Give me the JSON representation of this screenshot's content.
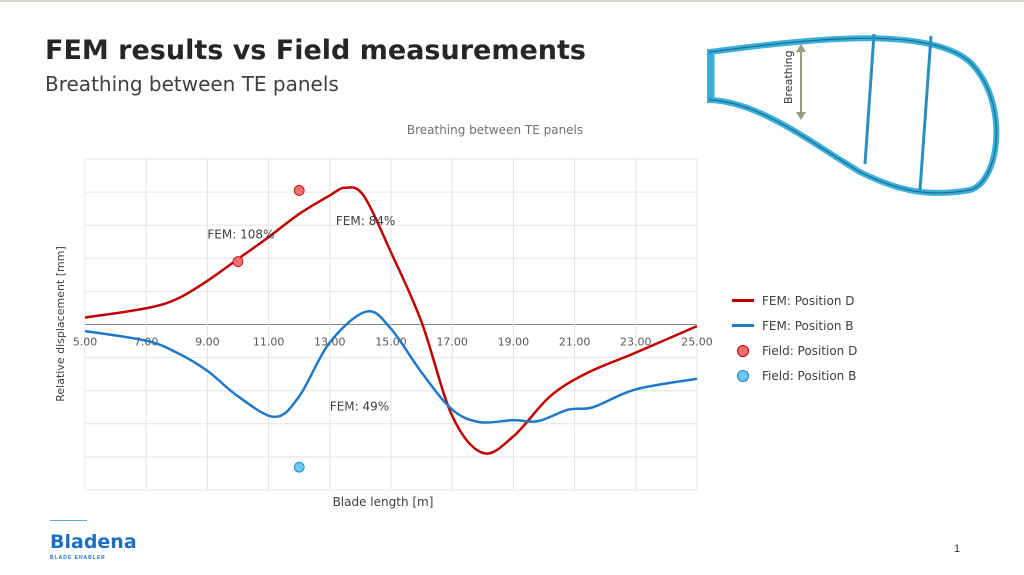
{
  "slide": {
    "title": "FEM results vs Field measurements",
    "subtitle": "Breathing between TE panels",
    "page_number": "1",
    "logo": {
      "name": "Bladena",
      "tagline": "BLADE ENABLER"
    },
    "diagram": {
      "label": "Breathing"
    }
  },
  "colors": {
    "red": "#c00000",
    "blue": "#1f78c8",
    "field_red": "#f07070",
    "field_blue": "#6cc8f0"
  },
  "chart_data": {
    "type": "line",
    "title": "Breathing between TE panels",
    "xlabel": "Blade length [m]",
    "ylabel": "Relative displacement [mm]",
    "xlim": [
      5,
      25
    ],
    "ylim": [
      -5,
      5
    ],
    "xticks": [
      "5.00",
      "7.00",
      "9.00",
      "11.00",
      "13.00",
      "15.00",
      "17.00",
      "19.00",
      "21.00",
      "23.00",
      "25.00"
    ],
    "grid": true,
    "series": [
      {
        "name": "FEM:  Position D",
        "color": "#c00000",
        "x": [
          5,
          7,
          8,
          9,
          10,
          11,
          12,
          13,
          13.5,
          14.1,
          15,
          16,
          17,
          18,
          19,
          20.2,
          21.4,
          23,
          25
        ],
        "y": [
          0.21,
          0.49,
          0.77,
          1.32,
          1.98,
          2.64,
          3.34,
          3.9,
          4.13,
          3.9,
          2.18,
          0.07,
          -2.76,
          -3.88,
          -3.38,
          -2.17,
          -1.47,
          -0.85,
          -0.05
        ]
      },
      {
        "name": "FEM:  Position B",
        "color": "#1f78c8",
        "x": [
          5,
          7,
          8,
          9,
          10,
          11.2,
          12,
          13,
          14.2,
          15,
          16,
          17,
          17.9,
          19,
          19.8,
          20.8,
          21.6,
          23,
          25
        ],
        "y": [
          -0.2,
          -0.49,
          -0.85,
          -1.4,
          -2.17,
          -2.79,
          -2.17,
          -0.54,
          0.39,
          -0.13,
          -1.45,
          -2.57,
          -2.95,
          -2.89,
          -2.92,
          -2.57,
          -2.5,
          -1.96,
          -1.64
        ]
      },
      {
        "name": "Field:  Position D",
        "type": "scatter",
        "color": "#f07070",
        "x": [
          10,
          12
        ],
        "y": [
          1.9,
          4.05
        ]
      },
      {
        "name": "Field:  Position B",
        "type": "scatter",
        "color": "#6cc8f0",
        "x": [
          12
        ],
        "y": [
          -4.31
        ]
      }
    ],
    "annotations": [
      {
        "text": "FEM: 108%",
        "x": 9.0,
        "y": 2.6
      },
      {
        "text": "FEM: 84%",
        "x": 13.2,
        "y": 3.0
      },
      {
        "text": "FEM: 49%",
        "x": 13.0,
        "y": -2.6
      }
    ],
    "legend": "right"
  }
}
